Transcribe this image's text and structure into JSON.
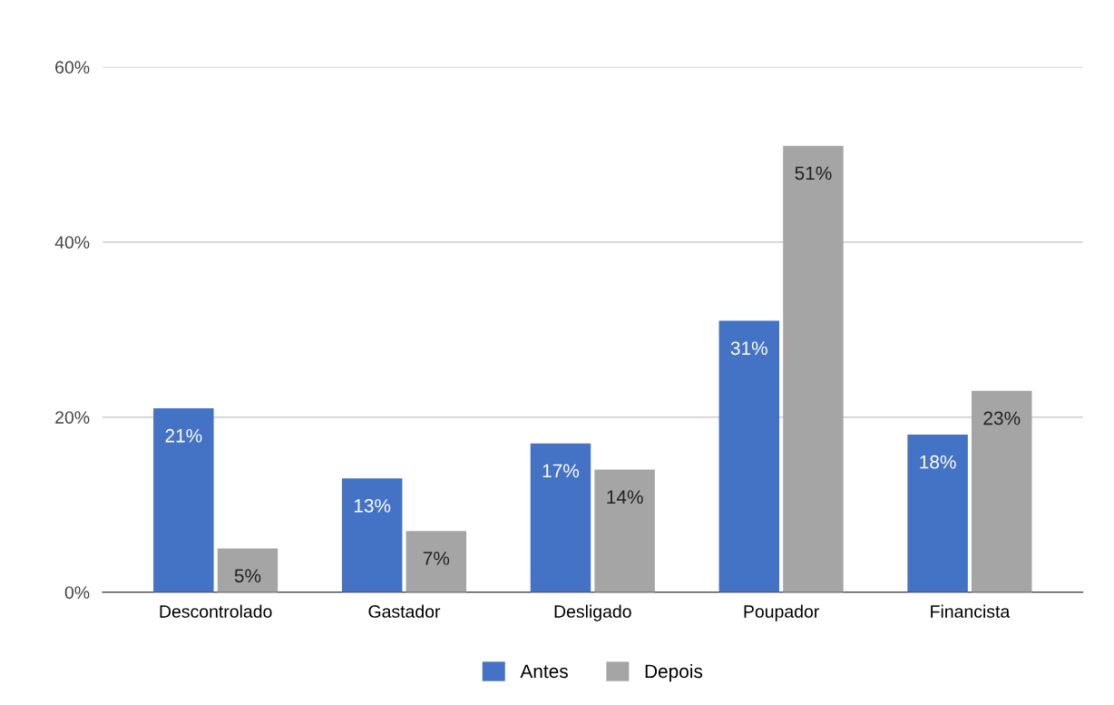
{
  "chart_data": {
    "type": "bar",
    "categories": [
      "Descontrolado",
      "Gastador",
      "Desligado",
      "Poupador",
      "Financista"
    ],
    "series": [
      {
        "name": "Antes",
        "color": "#4472c4",
        "values": [
          21,
          13,
          17,
          31,
          18
        ],
        "value_labels": [
          "21%",
          "13%",
          "17%",
          "31%",
          "18%"
        ]
      },
      {
        "name": "Depois",
        "color": "#a5a5a5",
        "values": [
          5,
          7,
          14,
          51,
          23
        ],
        "value_labels": [
          "5%",
          "7%",
          "14%",
          "51%",
          "23%"
        ]
      }
    ],
    "ylim": [
      0,
      60
    ],
    "yticks": [
      {
        "value": 0,
        "label": "0%"
      },
      {
        "value": 20,
        "label": "20%"
      },
      {
        "value": 40,
        "label": "40%"
      },
      {
        "value": 60,
        "label": "60%"
      }
    ],
    "grid": "y",
    "legend": "bottom"
  }
}
